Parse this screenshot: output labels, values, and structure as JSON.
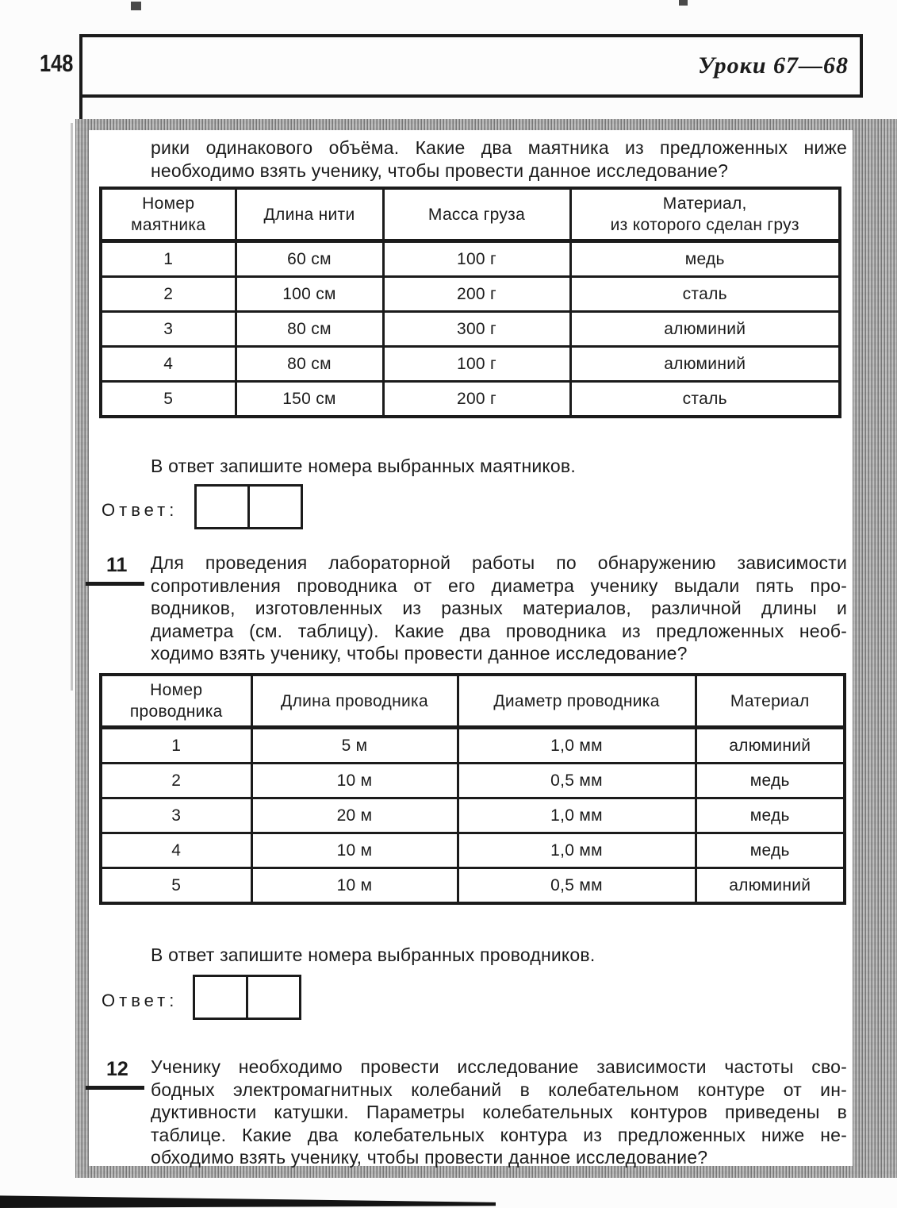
{
  "page": {
    "number": "148",
    "header_title": "Уроки 67—68"
  },
  "intro": {
    "lines": [
      "рики одинакового объёма. Какие два маятника из предложенных ниже",
      "необходимо взять ученику, чтобы провести данное исследование?"
    ]
  },
  "pendulum_table": {
    "headers": [
      "Номер\nмаятника",
      "Длина нити",
      "Масса груза",
      "Материал,\nиз которого сделан груз"
    ],
    "rows": [
      [
        "1",
        "60 см",
        "100 г",
        "медь"
      ],
      [
        "2",
        "100 см",
        "200 г",
        "сталь"
      ],
      [
        "3",
        "80 см",
        "300 г",
        "алюминий"
      ],
      [
        "4",
        "80 см",
        "100 г",
        "алюминий"
      ],
      [
        "5",
        "150 см",
        "200 г",
        "сталь"
      ]
    ]
  },
  "answer1": {
    "instruction": "В ответ запишите номера выбранных маятников.",
    "label": "Ответ:"
  },
  "q11": {
    "number": "11",
    "lines": [
      "Для проведения лабораторной работы по обнаружению зависимости",
      "сопротивления проводника от его диаметра ученику выдали пять про-",
      "водников, изготовленных из разных материалов, различной длины и",
      "диаметра (см. таблицу). Какие два проводника из предложенных необ-",
      "ходимо взять ученику, чтобы провести данное исследование?"
    ]
  },
  "conductor_table": {
    "headers": [
      "Номер\nпроводника",
      "Длина проводника",
      "Диаметр проводника",
      "Материал"
    ],
    "rows": [
      [
        "1",
        "5 м",
        "1,0 мм",
        "алюминий"
      ],
      [
        "2",
        "10 м",
        "0,5 мм",
        "медь"
      ],
      [
        "3",
        "20 м",
        "1,0 мм",
        "медь"
      ],
      [
        "4",
        "10 м",
        "1,0 мм",
        "медь"
      ],
      [
        "5",
        "10 м",
        "0,5 мм",
        "алюминий"
      ]
    ]
  },
  "answer2": {
    "instruction": "В ответ запишите номера выбранных проводников.",
    "label": "Ответ:"
  },
  "q12": {
    "number": "12",
    "lines": [
      "Ученику необходимо провести исследование зависимости частоты сво-",
      "бодных электромагнитных колебаний в колебательном контуре от ин-",
      "дуктивности катушки. Параметры колебательных контуров приведены в",
      "таблице. Какие два колебательных контура из предложенных ниже не-",
      "обходимо взять ученику, чтобы провести данное исследование?"
    ]
  }
}
